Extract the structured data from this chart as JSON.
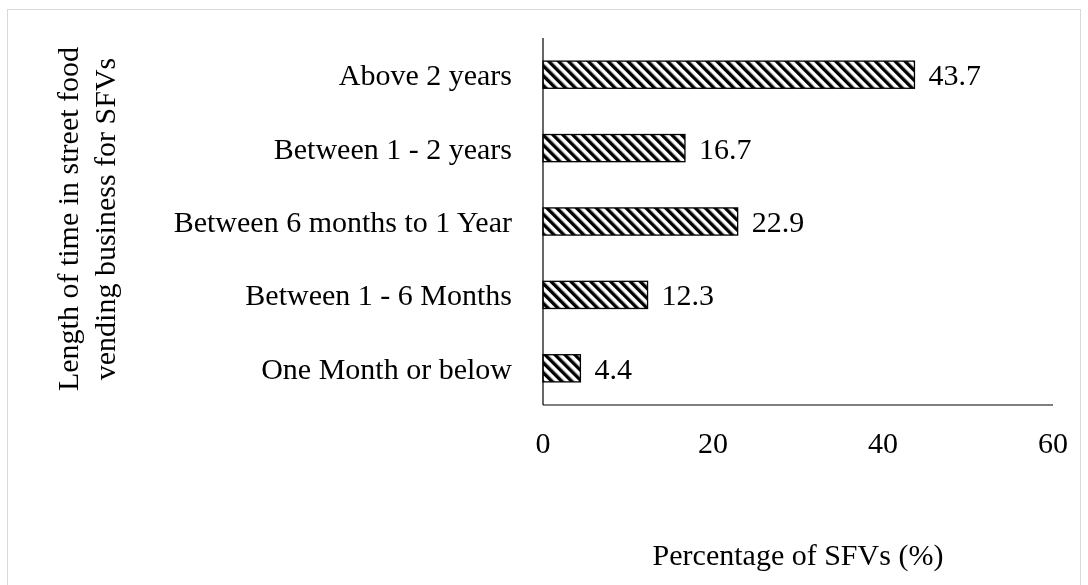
{
  "chart_data": {
    "type": "bar",
    "orientation": "horizontal",
    "categories": [
      "Above 2 years",
      "Between 1 - 2 years",
      "Between 6 months to 1 Year",
      "Between 1 - 6 Months",
      "One Month or below"
    ],
    "values": [
      43.7,
      16.7,
      22.9,
      12.3,
      4.4
    ],
    "color": "#000000",
    "xlim": [
      0,
      60
    ],
    "xticks": [
      0,
      20,
      40,
      60
    ],
    "xlabel": "Percentage of SFVs (%)",
    "ylabel": "Length of time in street food vending business for SFVs",
    "data_labels": true
  }
}
